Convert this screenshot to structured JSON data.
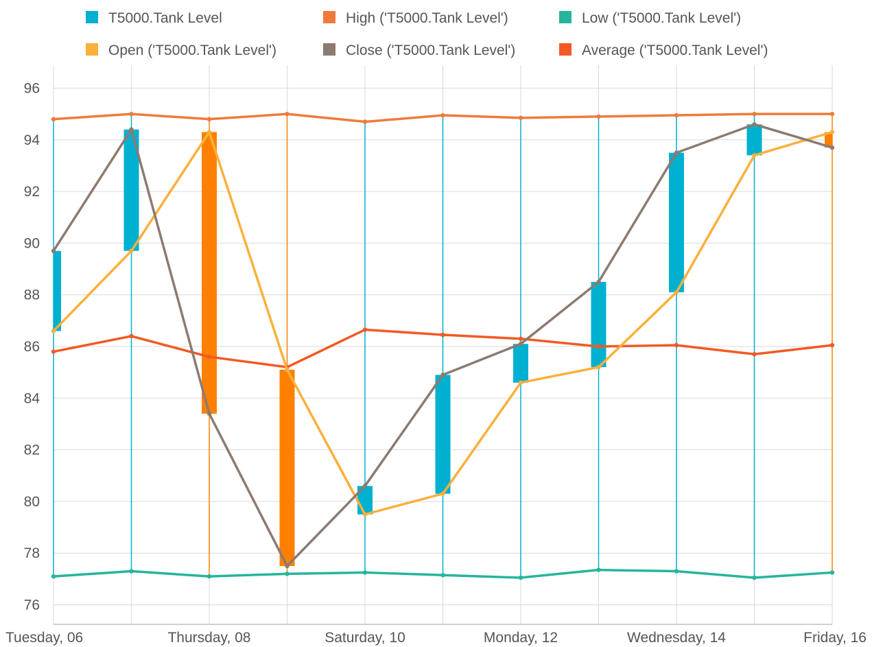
{
  "chart_data": {
    "type": "candlestick",
    "title": "",
    "xlabel": "",
    "ylabel": "",
    "ylim": [
      75.4,
      96.8
    ],
    "y_ticks": [
      76,
      78,
      80,
      82,
      84,
      86,
      88,
      90,
      92,
      94,
      96
    ],
    "grid": true,
    "legend_position": "top",
    "colors": {
      "rising": "#00b0d0",
      "falling": "#ff8000",
      "high": "#ee7b3d",
      "low": "#26b59b",
      "open": "#fbb03b",
      "close": "#8c7b70",
      "average": "#f15a24",
      "grid": "#d9d9d9",
      "axis": "#bfbfbf"
    },
    "x_tick_labels": [
      "Tuesday, 06",
      "Thursday, 08",
      "Saturday, 10",
      "Monday, 12",
      "Wednesday, 14",
      "Friday, 16"
    ],
    "x_tick_indices": [
      0,
      2,
      4,
      6,
      8,
      10
    ],
    "legend": [
      {
        "label": "T5000.Tank Level",
        "color": "#00b0d0"
      },
      {
        "label": "High ('T5000.Tank Level')",
        "color": "#ee7b3d"
      },
      {
        "label": "Low ('T5000.Tank Level')",
        "color": "#26b59b"
      },
      {
        "label": "Open ('T5000.Tank Level')",
        "color": "#fbb03b"
      },
      {
        "label": "Close ('T5000.Tank Level')",
        "color": "#8c7b70"
      },
      {
        "label": "Average ('T5000.Tank Level')",
        "color": "#f15a24"
      }
    ],
    "x": [
      "06",
      "07",
      "08",
      "09",
      "10",
      "11",
      "12",
      "13",
      "14",
      "15",
      "16"
    ],
    "open": [
      86.6,
      89.7,
      94.3,
      85.1,
      79.5,
      80.3,
      84.6,
      85.2,
      88.1,
      93.4,
      94.3
    ],
    "high": [
      94.8,
      95.0,
      94.8,
      95.0,
      94.7,
      94.95,
      94.85,
      94.9,
      94.95,
      95.0,
      95.0
    ],
    "low": [
      77.1,
      77.3,
      77.1,
      77.2,
      77.25,
      77.15,
      77.05,
      77.35,
      77.3,
      77.05,
      77.25
    ],
    "close": [
      89.7,
      94.4,
      83.4,
      77.5,
      80.6,
      84.9,
      86.1,
      88.5,
      93.5,
      94.6,
      93.7
    ],
    "average": [
      85.8,
      86.4,
      85.6,
      85.2,
      86.65,
      86.45,
      86.3,
      86.0,
      86.05,
      85.7,
      86.05
    ]
  }
}
